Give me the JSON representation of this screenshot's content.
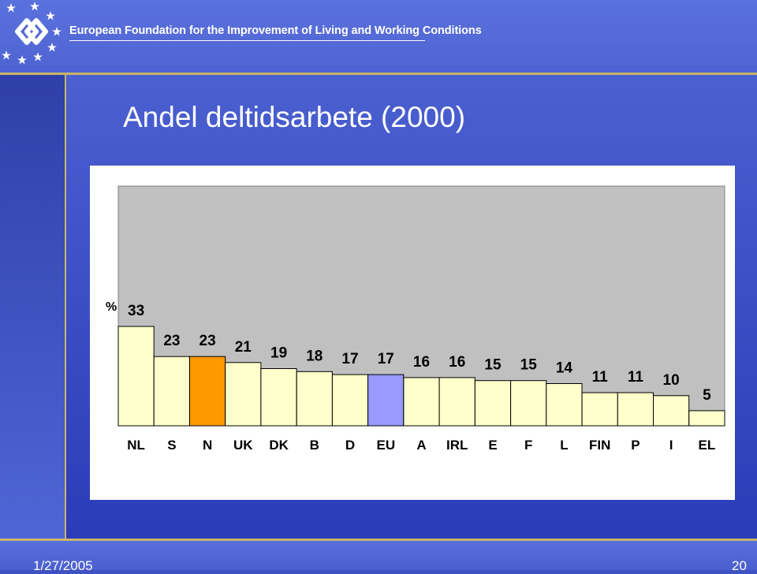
{
  "header": {
    "organization": "European Foundation for the Improvement of Living and Working Conditions",
    "logo_icon": "eurofound-logo-with-stars"
  },
  "slide": {
    "title": "Andel deltidsarbete (2000)"
  },
  "chart_data": {
    "type": "bar",
    "title": "",
    "ylabel": "%",
    "categories": [
      "NL",
      "S",
      "N",
      "UK",
      "DK",
      "B",
      "D",
      "EU",
      "A",
      "IRL",
      "E",
      "F",
      "L",
      "FIN",
      "P",
      "I",
      "EL"
    ],
    "values": [
      33,
      23,
      23,
      21,
      19,
      18,
      17,
      17,
      16,
      16,
      15,
      15,
      14,
      11,
      11,
      10,
      5
    ],
    "ylim": [
      0,
      33
    ],
    "grid": false,
    "legend": "none",
    "colors": {
      "default_bar": "#ffffcc",
      "highlight_N": "#ff9900",
      "highlight_EU": "#9999ff",
      "plot_background": "#c0c0c0",
      "bar_outline": "#000000"
    }
  },
  "footer": {
    "date": "1/27/2005",
    "page": "20"
  }
}
